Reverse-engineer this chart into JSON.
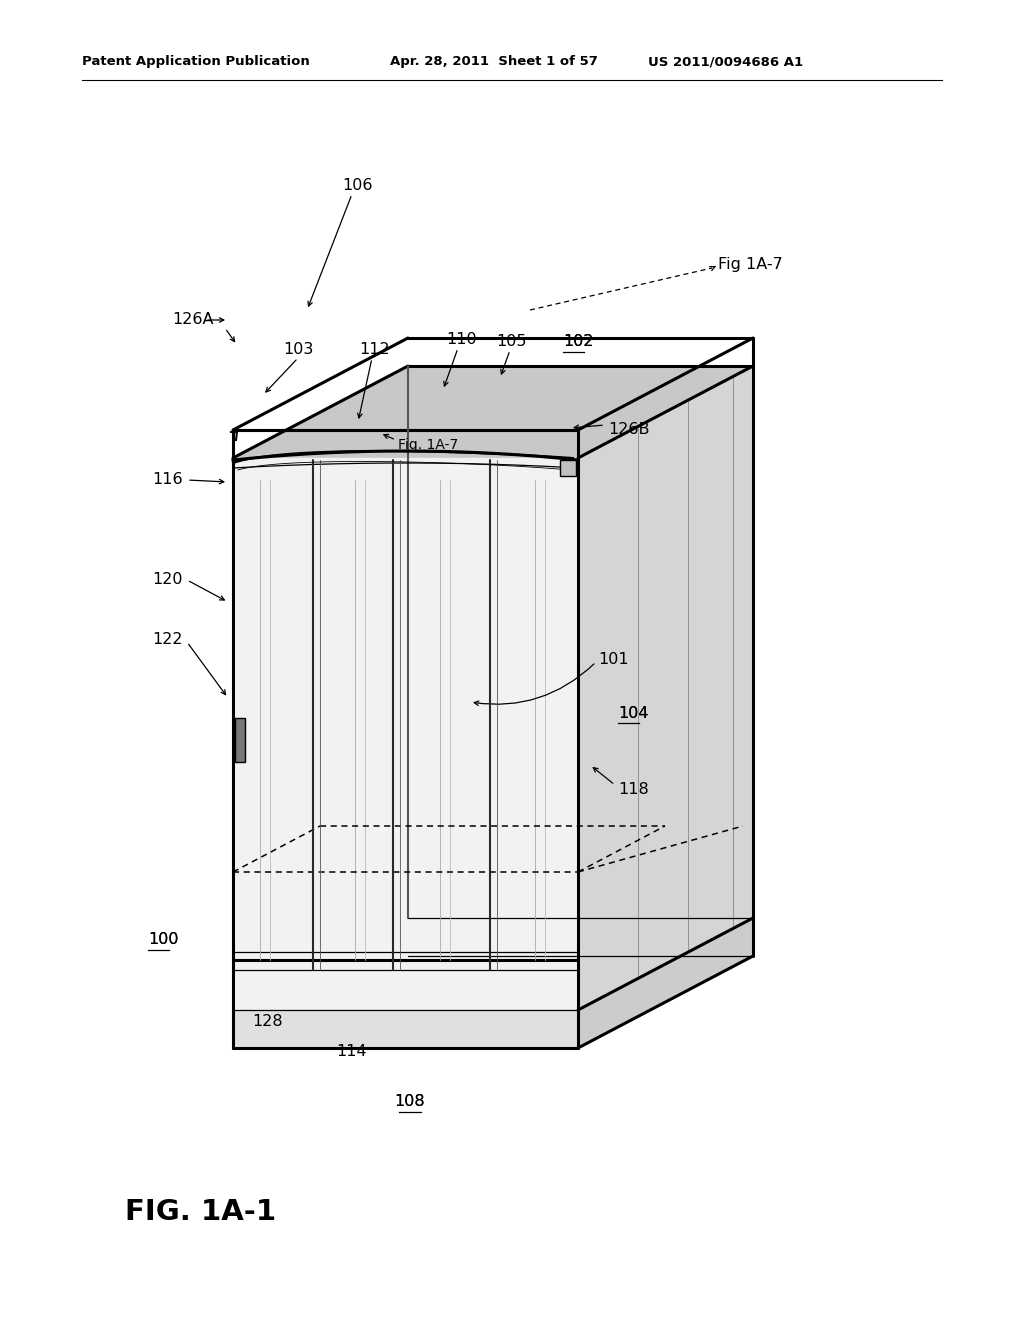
{
  "header_left": "Patent Application Publication",
  "header_mid": "Apr. 28, 2011  Sheet 1 of 57",
  "header_right": "US 2011/0094686 A1",
  "figure_label": "FIG. 1A-1",
  "background_color": "#ffffff",
  "line_color": "#000000",
  "lw_thick": 2.2,
  "lw_main": 1.5,
  "lw_thin": 0.9,
  "lw_hair": 0.6
}
